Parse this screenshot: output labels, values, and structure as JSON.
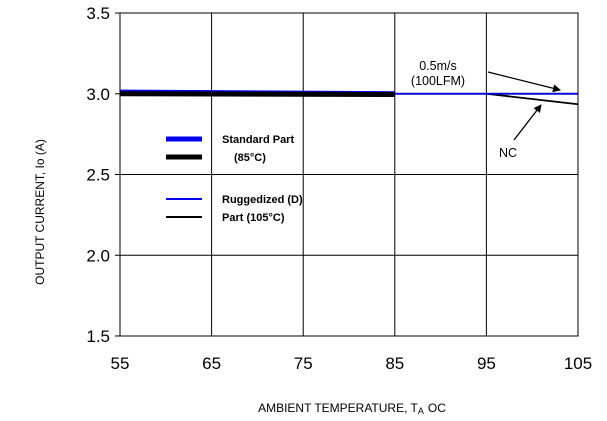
{
  "chart_data": {
    "type": "line",
    "title": "",
    "xlabel": "AMBIENT TEMPERATURE, T",
    "xlabel_sub": "A",
    "xlabel_unit": "OC",
    "ylabel": "OUTPUT CURRENT, Io  (A)",
    "xlim": [
      55,
      105
    ],
    "ylim": [
      1.5,
      3.5
    ],
    "x_ticks": [
      "55",
      "65",
      "75",
      "85",
      "95",
      "105"
    ],
    "y_ticks": [
      "3.5",
      "3.0",
      "2.5",
      "2.0",
      "1.5"
    ],
    "grid": true,
    "legend_position": "center-left",
    "legend": [
      {
        "lines": [
          "Standard Part",
          "(85°C)"
        ],
        "colors": [
          "#0000ee",
          "#000000"
        ],
        "width": "thick"
      },
      {
        "lines": [
          "Ruggedized (D)",
          "Part (105°C)"
        ],
        "colors": [
          "#0000ee",
          "#000000"
        ],
        "width": "thin"
      }
    ],
    "series": [
      {
        "color": "#0000ee",
        "style": "thick",
        "points": [
          [
            55,
            3.01
          ],
          [
            85,
            3.0
          ]
        ]
      },
      {
        "color": "#000000",
        "style": "thick",
        "points": [
          [
            55,
            3.0
          ],
          [
            85,
            2.995
          ]
        ]
      },
      {
        "color": "#000000",
        "style": "thin",
        "points": [
          [
            85,
            3.0
          ],
          [
            105,
            3.0
          ]
        ]
      },
      {
        "color": "#000000",
        "style": "thin",
        "points": [
          [
            95,
            3.0
          ],
          [
            105,
            2.935
          ]
        ]
      },
      {
        "color": "#0000ee",
        "style": "thin",
        "points": [
          [
            85,
            3.0
          ],
          [
            105,
            3.0
          ]
        ]
      }
    ],
    "annotations": [
      {
        "lines": [
          "0.5m/s",
          "(100LFM)"
        ]
      },
      {
        "lines": [
          "NC"
        ]
      }
    ]
  }
}
